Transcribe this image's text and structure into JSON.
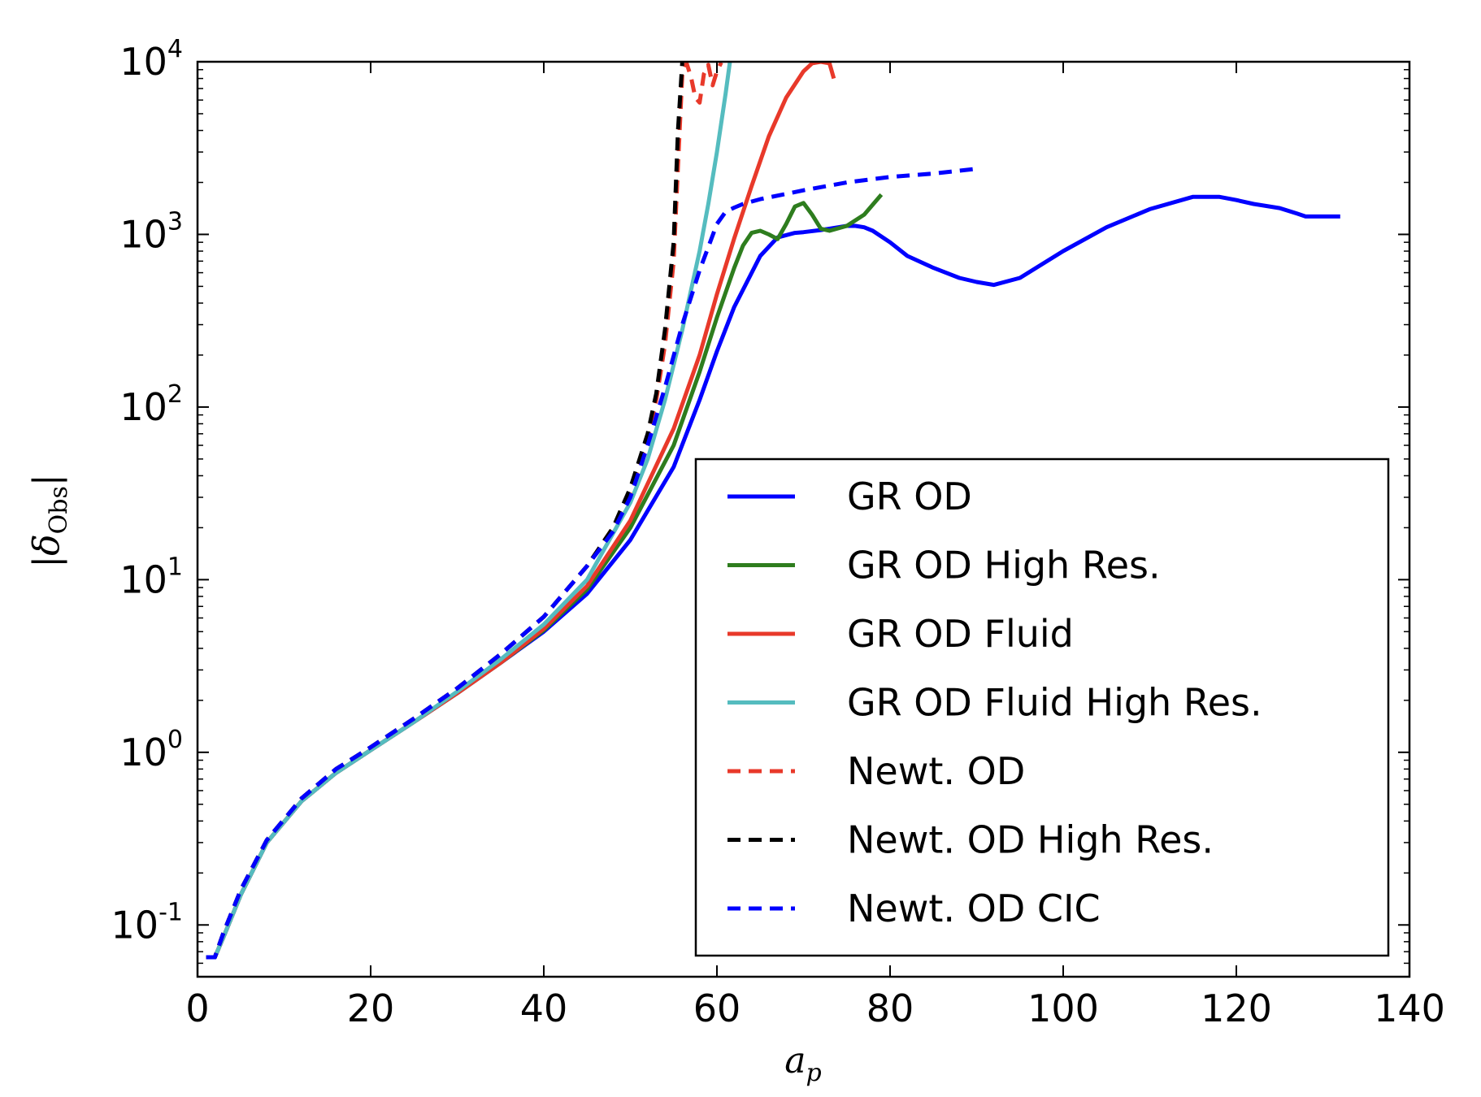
{
  "chart_data": {
    "type": "line",
    "xlabel": "a_p",
    "ylabel": "|δ_Obs|",
    "xlim": [
      0,
      140
    ],
    "ylim_log10": [
      -1.3,
      4
    ],
    "yscale": "log",
    "legend_position": "lower-right",
    "x_ticks": [
      "0",
      "20",
      "40",
      "60",
      "80",
      "100",
      "120",
      "140"
    ],
    "y_ticks": [
      {
        "base": "10",
        "exp": "-1",
        "log10": -1
      },
      {
        "base": "10",
        "exp": "0",
        "log10": 0
      },
      {
        "base": "10",
        "exp": "1",
        "log10": 1
      },
      {
        "base": "10",
        "exp": "2",
        "log10": 2
      },
      {
        "base": "10",
        "exp": "3",
        "log10": 3
      },
      {
        "base": "10",
        "exp": "4",
        "log10": 4
      }
    ],
    "series": [
      {
        "name": "GR OD",
        "color": "#0000ff",
        "dash": "solid",
        "x": [
          1,
          2,
          3,
          5,
          8,
          12,
          16,
          20,
          25,
          30,
          35,
          40,
          45,
          50,
          55,
          58,
          60,
          62,
          65,
          67,
          69,
          70,
          72,
          74,
          75,
          76,
          77,
          78,
          80,
          82,
          85,
          88,
          90,
          92,
          95,
          100,
          105,
          110,
          115,
          118,
          120,
          122,
          125,
          127,
          128,
          130,
          132
        ],
        "y": [
          0.065,
          0.065,
          0.085,
          0.15,
          0.3,
          0.52,
          0.76,
          1.03,
          1.5,
          2.2,
          3.3,
          5.0,
          8.3,
          17,
          45,
          110,
          210,
          380,
          750,
          960,
          1020,
          1030,
          1060,
          1100,
          1120,
          1120,
          1100,
          1050,
          900,
          750,
          640,
          560,
          530,
          510,
          560,
          800,
          1100,
          1400,
          1650,
          1650,
          1580,
          1500,
          1420,
          1320,
          1270,
          1270,
          1270
        ]
      },
      {
        "name": "GR OD High Res.",
        "color": "#2e7d1e",
        "dash": "solid",
        "x": [
          1,
          2,
          3,
          5,
          8,
          12,
          16,
          20,
          25,
          30,
          35,
          40,
          45,
          50,
          55,
          58,
          60,
          62,
          63,
          64,
          65,
          66,
          67,
          68,
          69,
          70,
          71,
          72,
          73,
          75,
          77,
          79
        ],
        "y": [
          0.065,
          0.065,
          0.085,
          0.15,
          0.3,
          0.52,
          0.76,
          1.03,
          1.5,
          2.2,
          3.3,
          5.1,
          8.8,
          20,
          60,
          160,
          330,
          640,
          860,
          1020,
          1050,
          1000,
          940,
          1150,
          1450,
          1520,
          1300,
          1080,
          1050,
          1120,
          1300,
          1700
        ]
      },
      {
        "name": "GR OD Fluid",
        "color": "#e8392a",
        "dash": "solid",
        "x": [
          1,
          2,
          3,
          5,
          8,
          12,
          16,
          20,
          25,
          30,
          35,
          40,
          45,
          50,
          55,
          58,
          60,
          62,
          64,
          66,
          68,
          70,
          71,
          72,
          73,
          73.5
        ],
        "y": [
          0.065,
          0.065,
          0.085,
          0.15,
          0.3,
          0.52,
          0.76,
          1.03,
          1.5,
          2.2,
          3.3,
          5.2,
          9.2,
          22,
          75,
          200,
          450,
          950,
          1900,
          3700,
          6200,
          8800,
          9800,
          10000,
          9800,
          8000
        ]
      },
      {
        "name": "GR OD Fluid High Res.",
        "color": "#55bcbf",
        "dash": "solid",
        "x": [
          1,
          2,
          3,
          5,
          8,
          12,
          16,
          20,
          25,
          30,
          35,
          40,
          45,
          50,
          52,
          54,
          56,
          58,
          59,
          60,
          61,
          61.5
        ],
        "y": [
          0.065,
          0.065,
          0.085,
          0.15,
          0.3,
          0.52,
          0.76,
          1.03,
          1.5,
          2.25,
          3.45,
          5.5,
          10,
          28,
          50,
          110,
          280,
          800,
          1500,
          3000,
          6500,
          10000
        ]
      },
      {
        "name": "Newt. OD",
        "color": "#e8392a",
        "dash": "dashed",
        "x": [
          1,
          2,
          3,
          5,
          8,
          12,
          16,
          20,
          25,
          30,
          35,
          40,
          45,
          48,
          50,
          52,
          53,
          54,
          55,
          55.5,
          56,
          56.5,
          57,
          57.5,
          58,
          58.5,
          59,
          59.5,
          60,
          60.5
        ],
        "y": [
          0.065,
          0.065,
          0.09,
          0.16,
          0.31,
          0.54,
          0.8,
          1.07,
          1.57,
          2.35,
          3.7,
          6.1,
          12,
          20,
          32,
          65,
          110,
          230,
          700,
          2500,
          8500,
          9800,
          8200,
          6200,
          5800,
          8500,
          9600,
          7300,
          8800,
          9900
        ]
      },
      {
        "name": "Newt. OD High Res.",
        "color": "#000000",
        "dash": "dashed",
        "x": [
          1,
          2,
          3,
          5,
          8,
          12,
          16,
          20,
          25,
          30,
          35,
          40,
          45,
          48,
          50,
          52,
          53,
          54,
          55,
          55.5,
          56
        ],
        "y": [
          0.065,
          0.065,
          0.09,
          0.16,
          0.31,
          0.54,
          0.8,
          1.07,
          1.57,
          2.35,
          3.7,
          6.1,
          12,
          20,
          34,
          70,
          120,
          280,
          900,
          4000,
          10000
        ]
      },
      {
        "name": "Newt. OD CIC",
        "color": "#0000ff",
        "dash": "dashed",
        "x": [
          1,
          2,
          3,
          5,
          8,
          12,
          16,
          20,
          25,
          30,
          35,
          40,
          45,
          48,
          50,
          52,
          54,
          56,
          58,
          60,
          61,
          62,
          63,
          65,
          70,
          75,
          80,
          85,
          90
        ],
        "y": [
          0.065,
          0.065,
          0.09,
          0.16,
          0.31,
          0.54,
          0.8,
          1.07,
          1.57,
          2.35,
          3.7,
          6.1,
          12,
          19,
          30,
          60,
          130,
          300,
          620,
          1150,
          1350,
          1430,
          1500,
          1600,
          1800,
          2000,
          2150,
          2250,
          2400
        ]
      }
    ]
  }
}
